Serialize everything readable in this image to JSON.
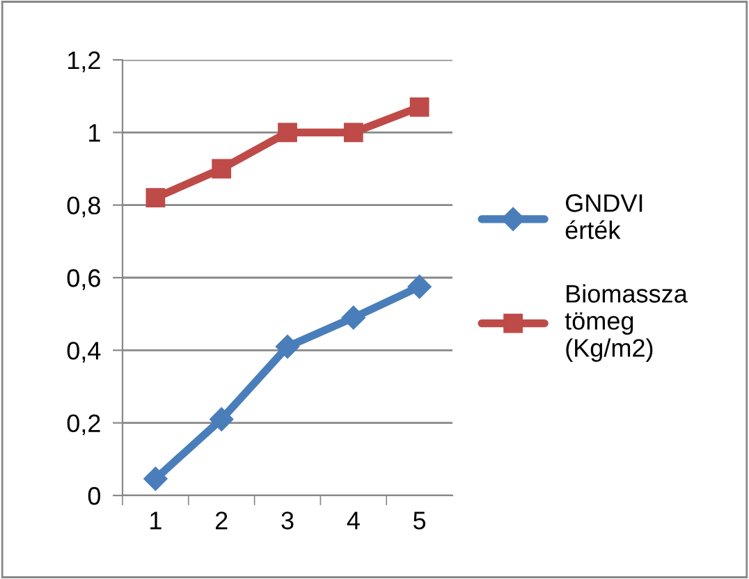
{
  "chart_data": {
    "type": "line",
    "categories": [
      "1",
      "2",
      "3",
      "4",
      "5"
    ],
    "series": [
      {
        "name": "GNDVI érték",
        "color": "#4a7ebb",
        "marker": "diamond",
        "values": [
          0.046,
          0.21,
          0.41,
          0.49,
          0.575
        ]
      },
      {
        "name": "Biomassza tömeg (Kg/m2)",
        "color": "#be4b48",
        "marker": "square",
        "values": [
          0.82,
          0.9,
          1.0,
          1.0,
          1.07
        ]
      }
    ],
    "ylim": [
      0,
      1.2
    ],
    "yticks": [
      {
        "value": 0,
        "label": "0"
      },
      {
        "value": 0.2,
        "label": "0,2"
      },
      {
        "value": 0.4,
        "label": "0,4"
      },
      {
        "value": 0.6,
        "label": "0,6"
      },
      {
        "value": 0.8,
        "label": "0,8"
      },
      {
        "value": 1,
        "label": "1"
      },
      {
        "value": 1.2,
        "label": "1,2"
      }
    ],
    "grid": "y",
    "legend": "right"
  }
}
